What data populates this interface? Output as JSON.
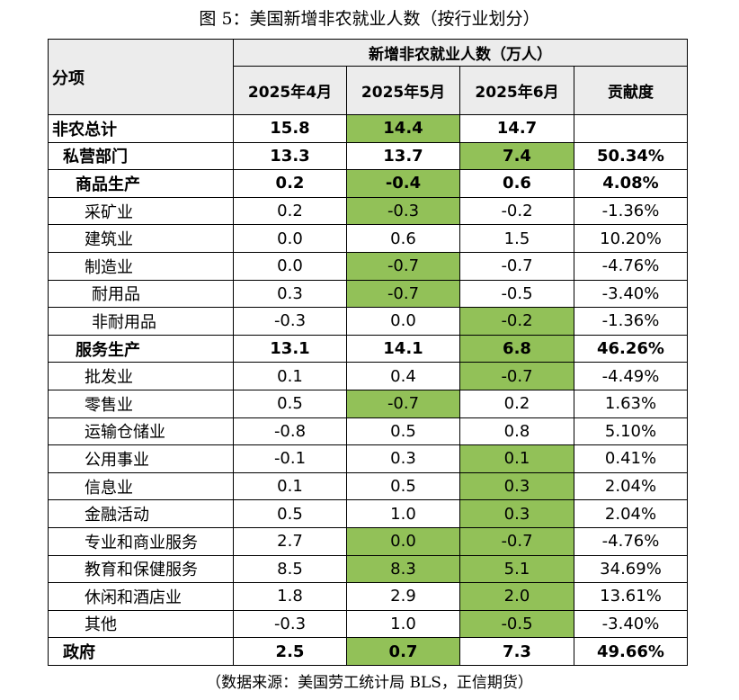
{
  "title": "图 5：美国新增非农就业人数（按行业划分）",
  "header": {
    "item": "分项",
    "group": "新增非农就业人数（万人）",
    "columns": [
      "2025年4月",
      "2025年5月",
      "2025年6月",
      "贡献度"
    ]
  },
  "colors": {
    "highlight": "#92c158",
    "header_bg": "#ececec"
  },
  "rows": [
    {
      "label": "非农总计",
      "level": 0,
      "bold": true,
      "values": [
        "15.8",
        "14.4",
        "14.7",
        ""
      ],
      "highlight": [
        1
      ]
    },
    {
      "label": "私营部门",
      "level": 1,
      "bold": true,
      "values": [
        "13.3",
        "13.7",
        "7.4",
        "50.34%"
      ],
      "highlight": [
        2
      ]
    },
    {
      "label": "商品生产",
      "level": 2,
      "bold": true,
      "values": [
        "0.2",
        "-0.4",
        "0.6",
        "4.08%"
      ],
      "highlight": [
        1
      ]
    },
    {
      "label": "采矿业",
      "level": 3,
      "bold": false,
      "values": [
        "0.2",
        "-0.3",
        "-0.2",
        "-1.36%"
      ],
      "highlight": [
        1
      ]
    },
    {
      "label": "建筑业",
      "level": 3,
      "bold": false,
      "values": [
        "0.0",
        "0.6",
        "1.5",
        "10.20%"
      ],
      "highlight": []
    },
    {
      "label": "制造业",
      "level": 3,
      "bold": false,
      "values": [
        "0.0",
        "-0.7",
        "-0.7",
        "-4.76%"
      ],
      "highlight": [
        1
      ]
    },
    {
      "label": "耐用品",
      "level": 4,
      "bold": false,
      "values": [
        "0.3",
        "-0.7",
        "-0.5",
        "-3.40%"
      ],
      "highlight": [
        1
      ]
    },
    {
      "label": "非耐用品",
      "level": 4,
      "bold": false,
      "values": [
        "-0.3",
        "0.0",
        "-0.2",
        "-1.36%"
      ],
      "highlight": [
        2
      ]
    },
    {
      "label": "服务生产",
      "level": 2,
      "bold": true,
      "values": [
        "13.1",
        "14.1",
        "6.8",
        "46.26%"
      ],
      "highlight": [
        2
      ]
    },
    {
      "label": "批发业",
      "level": 3,
      "bold": false,
      "values": [
        "0.1",
        "0.4",
        "-0.7",
        "-4.49%"
      ],
      "highlight": [
        2
      ]
    },
    {
      "label": "零售业",
      "level": 3,
      "bold": false,
      "values": [
        "0.5",
        "-0.7",
        "0.2",
        "1.63%"
      ],
      "highlight": [
        1
      ]
    },
    {
      "label": "运输仓储业",
      "level": 3,
      "bold": false,
      "values": [
        "-0.8",
        "0.5",
        "0.8",
        "5.10%"
      ],
      "highlight": []
    },
    {
      "label": "公用事业",
      "level": 3,
      "bold": false,
      "values": [
        "-0.1",
        "0.3",
        "0.1",
        "0.41%"
      ],
      "highlight": [
        2
      ]
    },
    {
      "label": "信息业",
      "level": 3,
      "bold": false,
      "values": [
        "0.1",
        "0.5",
        "0.3",
        "2.04%"
      ],
      "highlight": [
        2
      ]
    },
    {
      "label": "金融活动",
      "level": 3,
      "bold": false,
      "values": [
        "0.5",
        "1.0",
        "0.3",
        "2.04%"
      ],
      "highlight": [
        2
      ]
    },
    {
      "label": "专业和商业服务",
      "level": 3,
      "bold": false,
      "values": [
        "2.7",
        "0.0",
        "-0.7",
        "-4.76%"
      ],
      "highlight": [
        1,
        2
      ]
    },
    {
      "label": "教育和保健服务",
      "level": 3,
      "bold": false,
      "values": [
        "8.5",
        "8.3",
        "5.1",
        "34.69%"
      ],
      "highlight": [
        1,
        2
      ]
    },
    {
      "label": "休闲和酒店业",
      "level": 3,
      "bold": false,
      "values": [
        "1.8",
        "2.9",
        "2.0",
        "13.61%"
      ],
      "highlight": [
        2
      ]
    },
    {
      "label": "其他",
      "level": 3,
      "bold": false,
      "values": [
        "-0.3",
        "1.0",
        "-0.5",
        "-3.40%"
      ],
      "highlight": [
        2
      ]
    },
    {
      "label": "政府",
      "level": 1,
      "bold": true,
      "values": [
        "2.5",
        "0.7",
        "7.3",
        "49.66%"
      ],
      "highlight": [
        1
      ]
    }
  ],
  "source": "（数据来源：美国劳工统计局 BLS，正信期货）"
}
